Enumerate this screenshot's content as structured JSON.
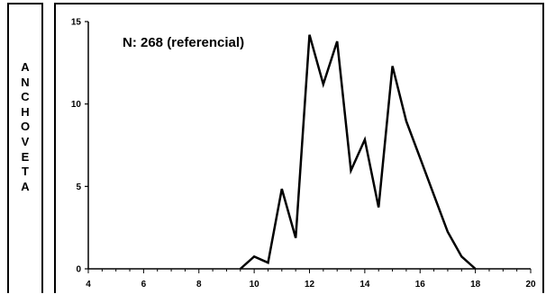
{
  "side_label": [
    "A",
    "N",
    "C",
    "H",
    "O",
    "V",
    "E",
    "T",
    "A"
  ],
  "chart_data": {
    "type": "line",
    "title": "",
    "annotation": "N: 268 (referencial)",
    "xlabel": "",
    "ylabel": "",
    "xlim": [
      4,
      20
    ],
    "ylim": [
      0,
      15
    ],
    "x_ticks": [
      4,
      6,
      8,
      10,
      12,
      14,
      16,
      18,
      20
    ],
    "y_ticks": [
      0,
      5,
      10,
      15
    ],
    "grid": false,
    "series": [
      {
        "x": [
          9.5,
          10,
          10.5,
          11,
          11.5,
          12,
          12.5,
          13,
          13.5,
          14,
          14.5,
          15,
          15.5,
          16,
          16.5,
          17,
          17.5,
          18
        ],
        "values": [
          0,
          0.75,
          0.37,
          4.85,
          1.87,
          14.2,
          11.2,
          13.8,
          5.97,
          7.84,
          3.73,
          12.3,
          8.96,
          6.72,
          4.48,
          2.24,
          0.75,
          0
        ]
      }
    ]
  }
}
